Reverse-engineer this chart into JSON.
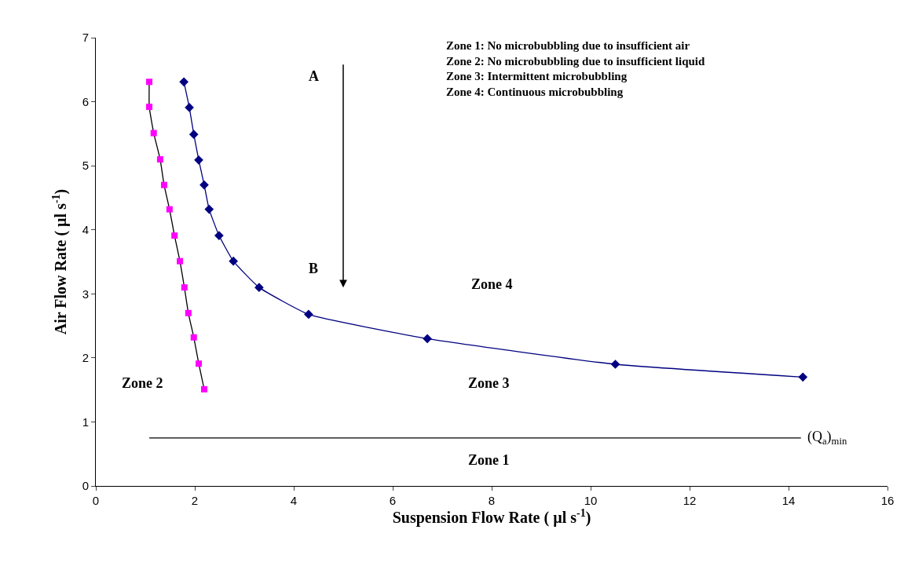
{
  "chart_data": {
    "type": "line",
    "xlabel": "Suspension Flow Rate ( µl s$^{-1}$)",
    "ylabel": "Air Flow Rate ( µl s$^{-1}$)",
    "xlim": [
      0,
      16
    ],
    "xticks": [
      0,
      2,
      4,
      6,
      8,
      10,
      12,
      14,
      16
    ],
    "ylim": [
      0,
      7
    ],
    "yticks": [
      0,
      1,
      2,
      3,
      4,
      5,
      6,
      7
    ],
    "legend": false,
    "series": [
      {
        "color": "#ff00ff",
        "marker": "square",
        "x": [
          1.08,
          1.08,
          1.17,
          1.3,
          1.38,
          1.49,
          1.59,
          1.7,
          1.79,
          1.87,
          1.98,
          2.08,
          2.19
        ],
        "values": [
          6.31,
          5.92,
          5.51,
          5.1,
          4.7,
          4.32,
          3.91,
          3.51,
          3.1,
          2.7,
          2.32,
          1.91,
          1.51
        ]
      },
      {
        "color": "#000080",
        "marker": "diamond",
        "x": [
          1.78,
          1.89,
          1.98,
          2.08,
          2.19,
          2.29,
          2.49,
          2.78,
          3.3,
          4.3,
          6.7,
          10.5,
          14.29
        ],
        "values": [
          6.31,
          5.91,
          5.49,
          5.09,
          4.7,
          4.32,
          3.91,
          3.51,
          3.1,
          2.68,
          2.3,
          1.9,
          1.7
        ]
      },
      {
        "color": "#000000",
        "marker": "none",
        "x": [
          1.08,
          14.25
        ],
        "values": [
          0.75,
          0.75
        ]
      }
    ],
    "annotations": [
      "Zone 1: No microbubbling due to insufficient air\nZone 2: No microbubbling due to insufficient liquid\nZone 3: Intermittent microbubbling\nZone 4: Continuous microbubbling",
      "A",
      "B",
      "Zone 4",
      "Zone 3",
      "Zone 2",
      "Zone 1",
      {
        "text": "(Q$_{a}$)$_{min}$",
        "x": 14.25,
        "y": 0.75
      }
    ]
  }
}
